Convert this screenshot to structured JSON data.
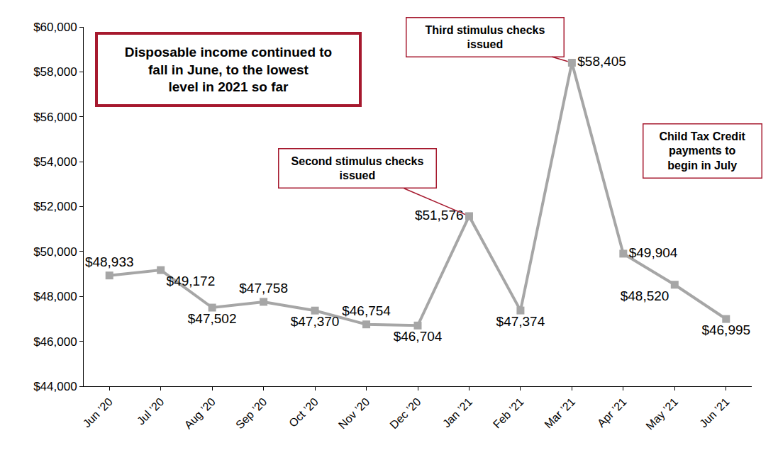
{
  "chart_data": {
    "type": "line",
    "categories": [
      "Jun ’20",
      "Jul ’20",
      "Aug ’20",
      "Sep ’20",
      "Oct ’20",
      "Nov ’20",
      "Dec ’20",
      "Jan ’21",
      "Feb ’21",
      "Mar ’21",
      "Apr ’21",
      "May ’21",
      "Jun ’21"
    ],
    "values": [
      48933,
      49172,
      47502,
      47758,
      47370,
      46754,
      46704,
      51576,
      47374,
      58405,
      49904,
      48520,
      46995
    ],
    "value_labels": [
      "$48,933",
      "$49,172",
      "$47,502",
      "$47,758",
      "$47,370",
      "$46,754",
      "$46,704",
      "$51,576",
      "$47,374",
      "$58,405",
      "$49,904",
      "$48,520",
      "$46,995"
    ],
    "data_labels": true,
    "color": "#a6a6a6",
    "marker": "square",
    "line_style": "solid",
    "grid": false,
    "ylim": [
      44000,
      60000
    ],
    "yticks": [
      {
        "value": 44000,
        "label": "$44,000"
      },
      {
        "value": 46000,
        "label": "$46,000"
      },
      {
        "value": 48000,
        "label": "$48,000"
      },
      {
        "value": 50000,
        "label": "$50,000"
      },
      {
        "value": 52000,
        "label": "$52,000"
      },
      {
        "value": 54000,
        "label": "$54,000"
      },
      {
        "value": 56000,
        "label": "$56,000"
      },
      {
        "value": 58000,
        "label": "$58,000"
      },
      {
        "value": 60000,
        "label": "$60,000"
      }
    ],
    "annotations": [
      {
        "text": "Disposable income continued to fall in June, to the lowest level in 2021 so far"
      },
      {
        "text": "Second stimulus checks issued",
        "x": "Jan ’21"
      },
      {
        "text": "Third stimulus checks issued",
        "x": "Mar ’21"
      },
      {
        "text": "Child Tax Credit payments to begin in July"
      }
    ]
  }
}
